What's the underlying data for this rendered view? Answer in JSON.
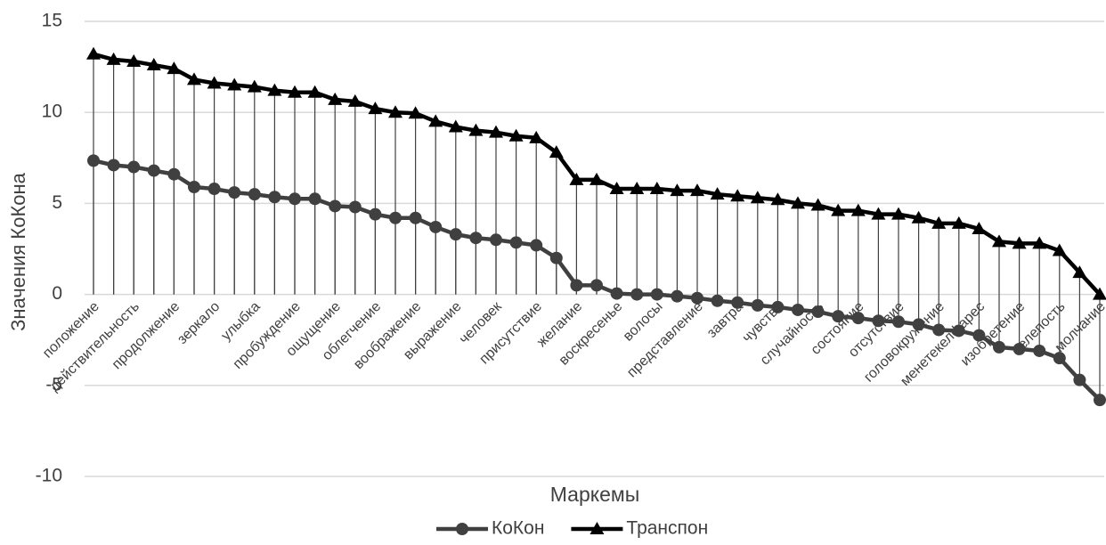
{
  "chart_data": {
    "type": "line",
    "x_label": "Маркемы",
    "y_label": "Значения КоКона",
    "categories": [
      "положение",
      null,
      "действительность",
      null,
      "продолжение",
      null,
      "зеркало",
      null,
      "улыбка",
      null,
      "пробуждение",
      null,
      "ощущение",
      null,
      "облегчение",
      null,
      "воображение",
      null,
      "выражение",
      null,
      "человек",
      null,
      "присутствие",
      null,
      "желание",
      null,
      "воскресенье",
      null,
      "волосы",
      null,
      "представление",
      null,
      "завтра",
      null,
      "чувство",
      null,
      "случайность",
      null,
      "состояние",
      null,
      "отсутствие",
      null,
      "головокружение",
      null,
      "менетекелфарес",
      null,
      "изобретение",
      null,
      "нелепость",
      null,
      "молчание"
    ],
    "series": [
      {
        "name": "КоКон",
        "color": "#404040",
        "marker": "circle",
        "values": [
          7.35,
          7.1,
          7.0,
          6.8,
          6.6,
          5.9,
          5.8,
          5.6,
          5.5,
          5.35,
          5.25,
          5.25,
          4.85,
          4.8,
          4.4,
          4.2,
          4.2,
          3.7,
          3.3,
          3.1,
          3.0,
          2.85,
          2.7,
          2.0,
          0.5,
          0.5,
          0.05,
          0,
          0,
          -0.1,
          -0.2,
          -0.35,
          -0.45,
          -0.6,
          -0.7,
          -0.85,
          -0.95,
          -1.2,
          -1.3,
          -1.45,
          -1.5,
          -1.65,
          -1.95,
          -2.0,
          -2.25,
          -2.9,
          -3.0,
          -3.1,
          -3.5,
          -4.7,
          -5.8
        ]
      },
      {
        "name": "Транспон",
        "color": "#000000",
        "marker": "triangle",
        "values": [
          13.2,
          12.9,
          12.8,
          12.6,
          12.4,
          11.8,
          11.6,
          11.5,
          11.4,
          11.2,
          11.1,
          11.1,
          10.7,
          10.6,
          10.2,
          10.0,
          9.95,
          9.5,
          9.2,
          9.0,
          8.9,
          8.7,
          8.6,
          7.8,
          6.3,
          6.3,
          5.8,
          5.8,
          5.8,
          5.7,
          5.7,
          5.5,
          5.4,
          5.3,
          5.2,
          5.0,
          4.9,
          4.6,
          4.6,
          4.4,
          4.4,
          4.2,
          3.9,
          3.9,
          3.6,
          2.9,
          2.8,
          2.8,
          2.4,
          1.2,
          0
        ]
      }
    ],
    "ylim": [
      -10,
      15
    ],
    "yticks": [
      -10,
      -5,
      0,
      5,
      10,
      15
    ],
    "grid": true,
    "drop_lines": true,
    "legend": "bottom"
  }
}
